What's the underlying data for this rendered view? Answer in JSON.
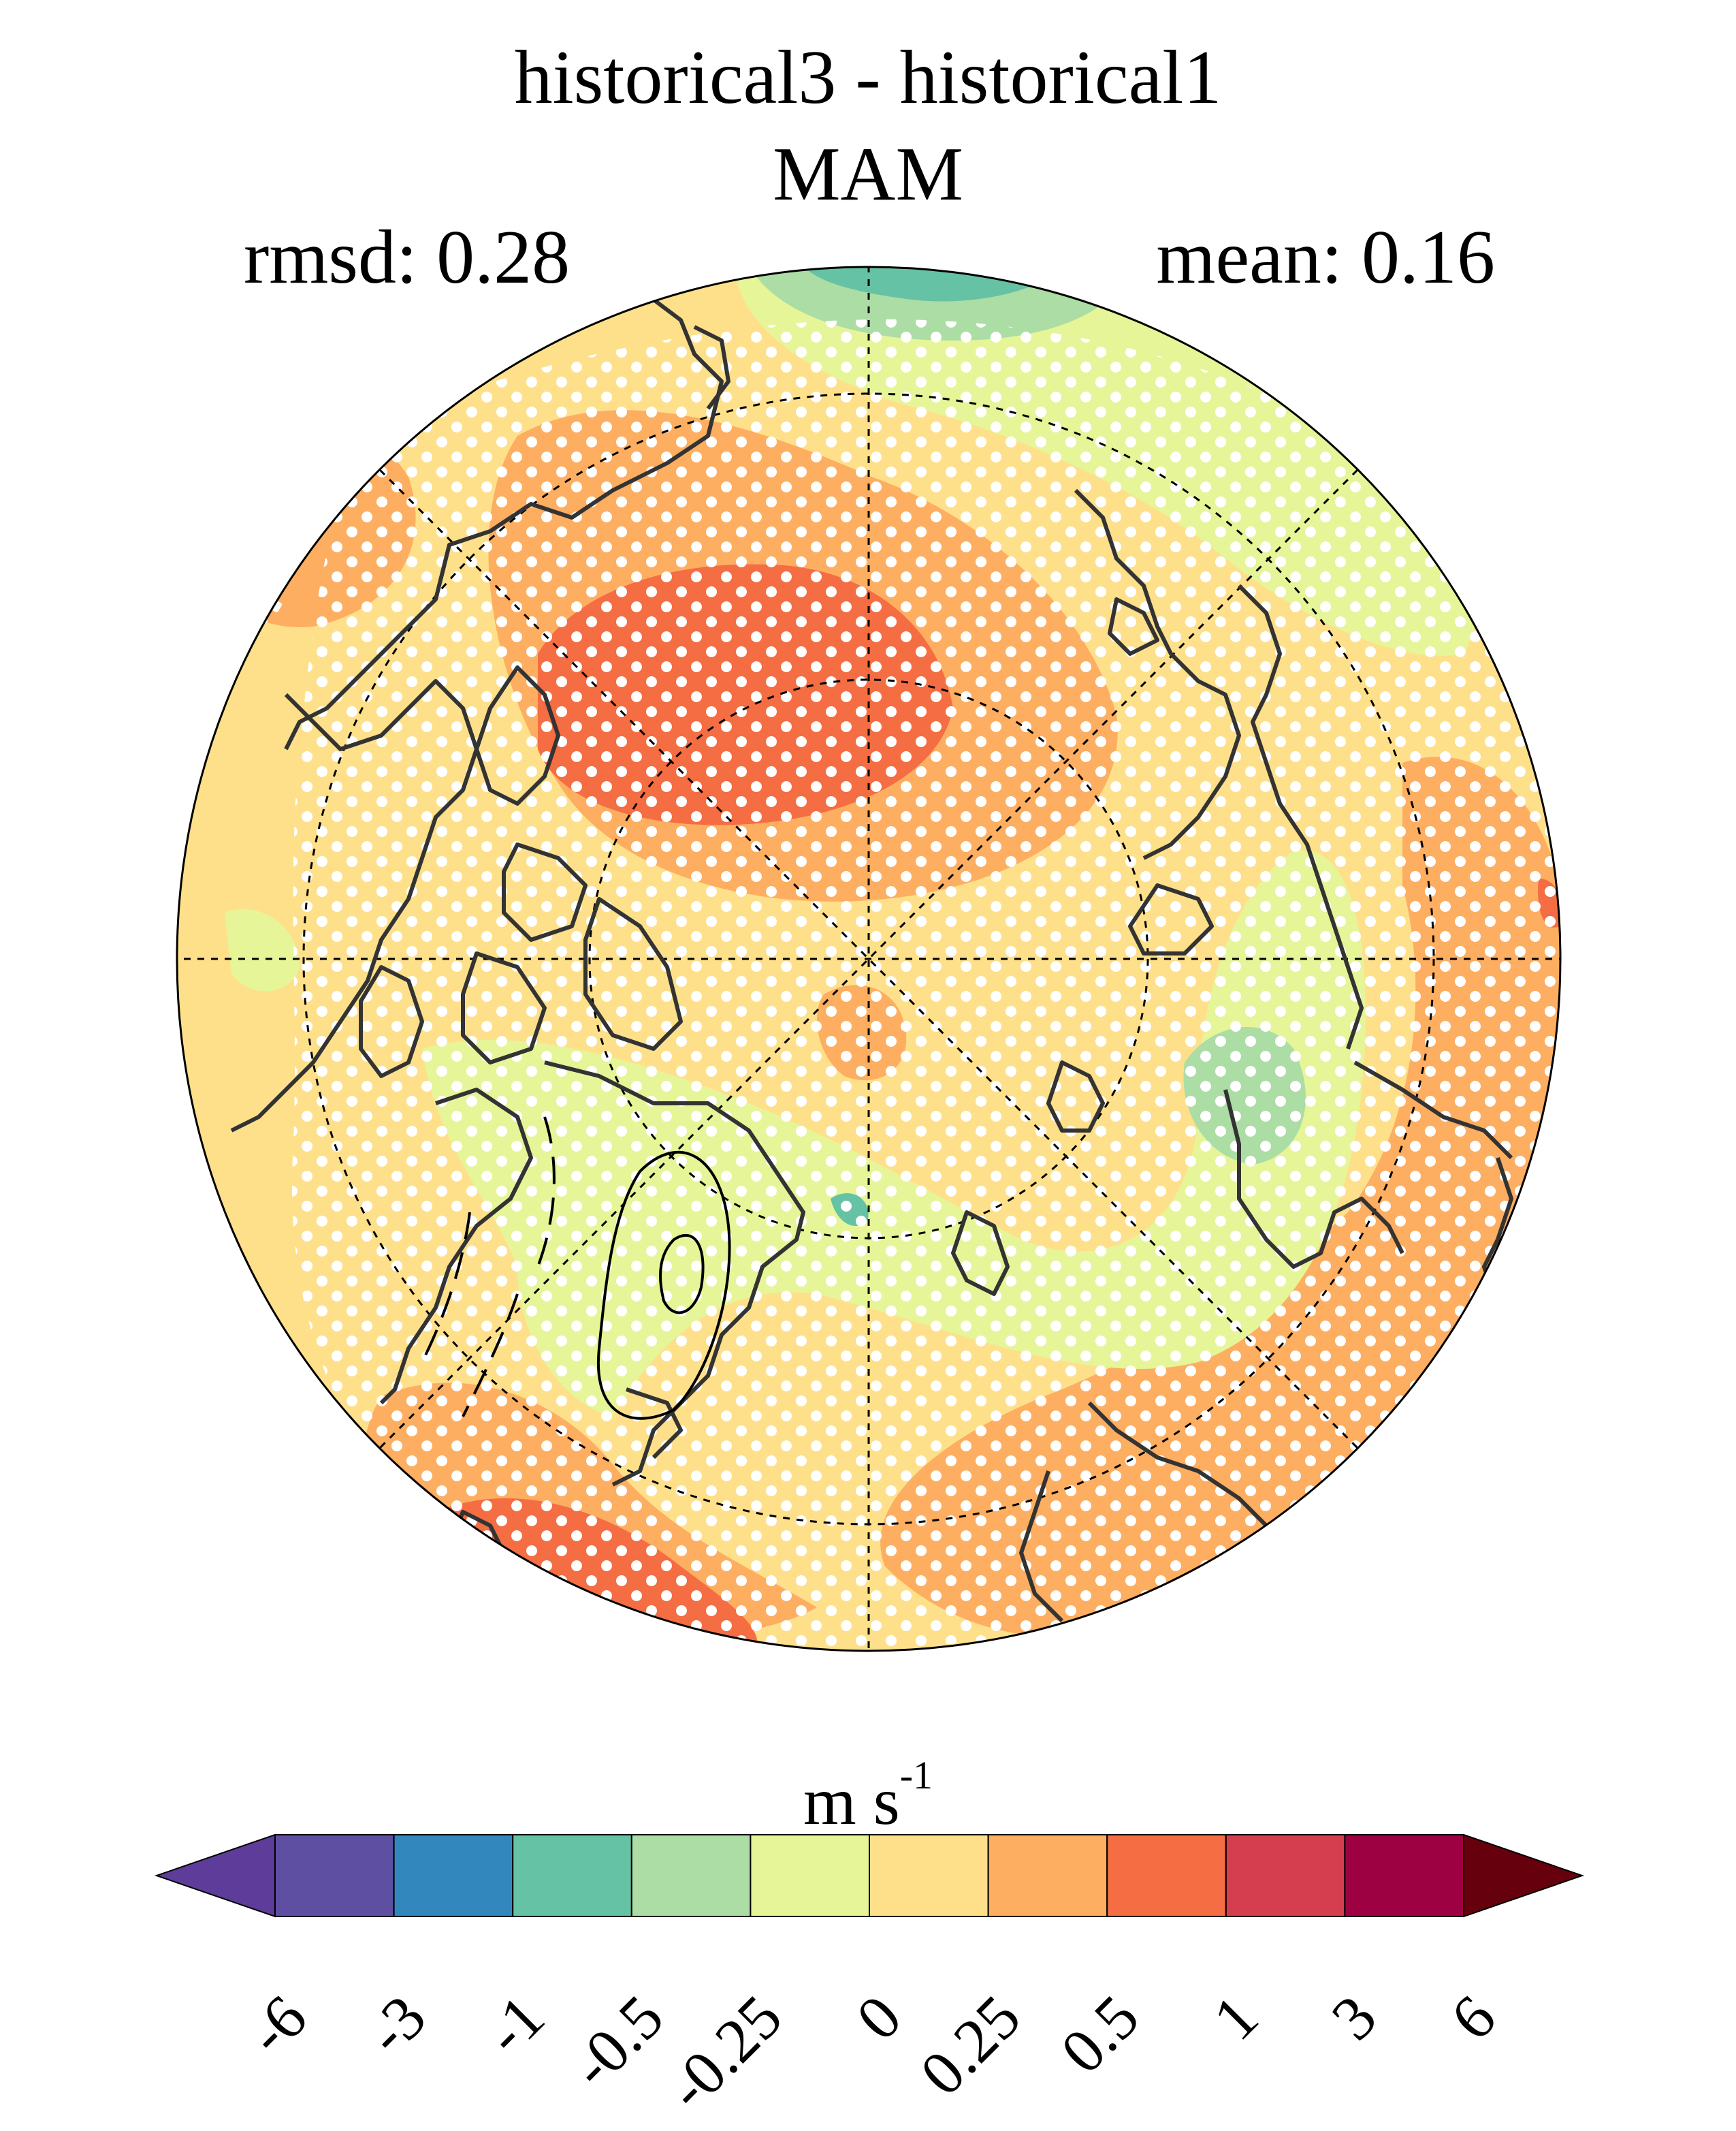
{
  "title": {
    "line1": "historical3 - historical1",
    "line2": "MAM"
  },
  "stats": {
    "rmsd_label": "rmsd: 0.28",
    "mean_label": "mean: 0.16"
  },
  "map": {
    "projection": "north-polar-stereographic",
    "field": "wind speed difference",
    "stippling": "white dots mark significant regions",
    "colors": {
      "ocean_land_base": "#fee08b",
      "positive_025_05": "#fdae61",
      "positive_05_1": "#f46d43",
      "positive_1_3": "#d53e4f",
      "negative_0_025": "#e6f598",
      "negative_025_05": "#abdda4",
      "negative_05_1": "#66c2a5",
      "coastline": "#333333",
      "stipple": "#ffffff"
    }
  },
  "colorbar": {
    "units_main": "m s",
    "units_exp": "-1",
    "colors": [
      "#5e4fa2",
      "#3288bd",
      "#66c2a5",
      "#abdda4",
      "#e6f598",
      "#fee08b",
      "#fdae61",
      "#f46d43",
      "#d53e4f",
      "#9e0142"
    ],
    "low_extend_color": "#5e3c99",
    "high_extend_color": "#67000d",
    "ticks": [
      "-6",
      "-3",
      "-1",
      "-0.5",
      "-0.25",
      "0",
      "0.25",
      "0.5",
      "1",
      "3",
      "6"
    ]
  }
}
